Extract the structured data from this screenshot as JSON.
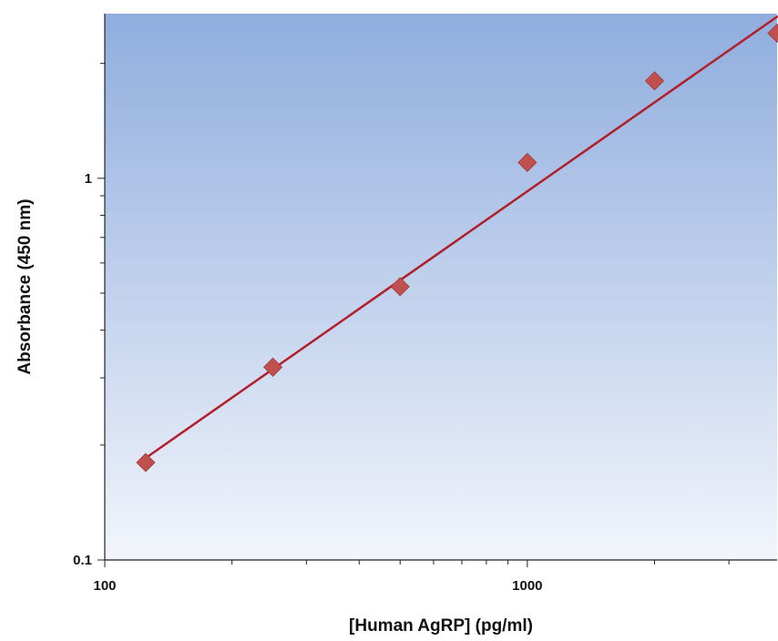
{
  "chart_data": {
    "type": "scatter",
    "title": "",
    "xlabel": "[Human AgRP] (pg/ml)",
    "ylabel": "Absorbance (450 nm)",
    "x_scale": "log",
    "y_scale": "log",
    "xlim": [
      100,
      3900
    ],
    "ylim": [
      0.1,
      2.7
    ],
    "x_tick_labels": [
      "100",
      "1000"
    ],
    "y_tick_labels": [
      "0.1",
      "1"
    ],
    "x_ticks": [
      100,
      1000
    ],
    "y_ticks": [
      0.1,
      1
    ],
    "grid": false,
    "legend": "none",
    "series": [
      {
        "marker": "diamond",
        "color": "#c0504d",
        "points": [
          {
            "x": 125,
            "y": 0.18
          },
          {
            "x": 250,
            "y": 0.32
          },
          {
            "x": 500,
            "y": 0.52
          },
          {
            "x": 1000,
            "y": 1.1
          },
          {
            "x": 2000,
            "y": 1.8
          },
          {
            "x": 3900,
            "y": 2.4
          }
        ]
      }
    ],
    "fit_line": {
      "color": "#b21f2a",
      "points": [
        {
          "x": 125,
          "y": 0.185
        },
        {
          "x": 3900,
          "y": 2.65
        }
      ]
    },
    "background_gradient": [
      "#8fadde",
      "#f2f5fb"
    ]
  }
}
